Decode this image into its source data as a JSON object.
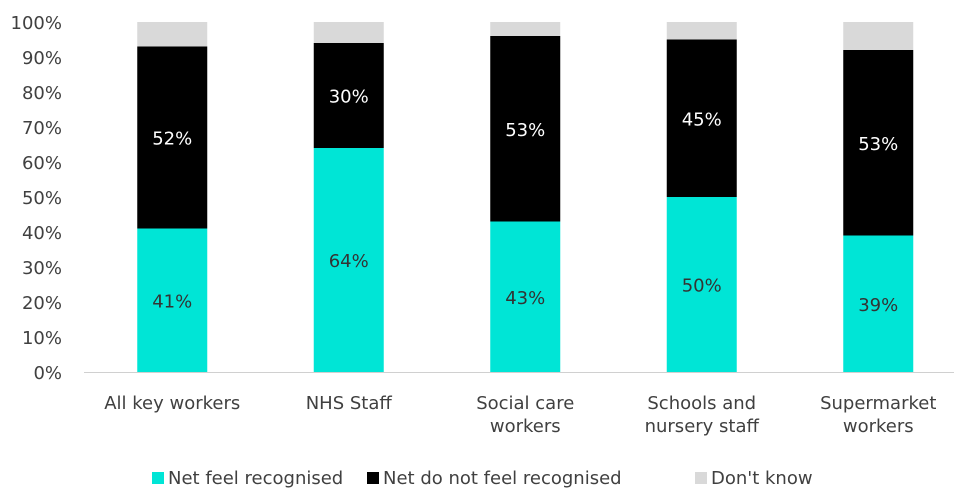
{
  "chart_data": {
    "type": "bar",
    "stacked": true,
    "categories": [
      [
        "All key workers"
      ],
      [
        "NHS Staff"
      ],
      [
        "Social care",
        "workers"
      ],
      [
        "Schools and",
        "nursery staff"
      ],
      [
        "Supermarket",
        "workers"
      ]
    ],
    "series": [
      {
        "name": "Net feel recognised",
        "color": "#00E5D6",
        "values": [
          41,
          64,
          43,
          50,
          39
        ],
        "labels": [
          "41%",
          "64%",
          "43%",
          "50%",
          "39%"
        ],
        "label_color": "#333333"
      },
      {
        "name": "Net do not feel recognised",
        "color": "#000000",
        "values": [
          52,
          30,
          53,
          45,
          53
        ],
        "labels": [
          "52%",
          "30%",
          "53%",
          "45%",
          "53%"
        ],
        "label_color": "#ffffff"
      },
      {
        "name": "Don't know",
        "color": "#D9D9D9",
        "values": [
          7,
          6,
          4,
          5,
          8
        ],
        "labels": [
          "",
          "",
          "",
          "",
          ""
        ],
        "label_color": "#333333"
      }
    ],
    "ylim": [
      0,
      100
    ],
    "yticks": [
      "0%",
      "10%",
      "20%",
      "30%",
      "40%",
      "50%",
      "60%",
      "70%",
      "80%",
      "90%",
      "100%"
    ],
    "grid": false,
    "legend": "bottom"
  }
}
